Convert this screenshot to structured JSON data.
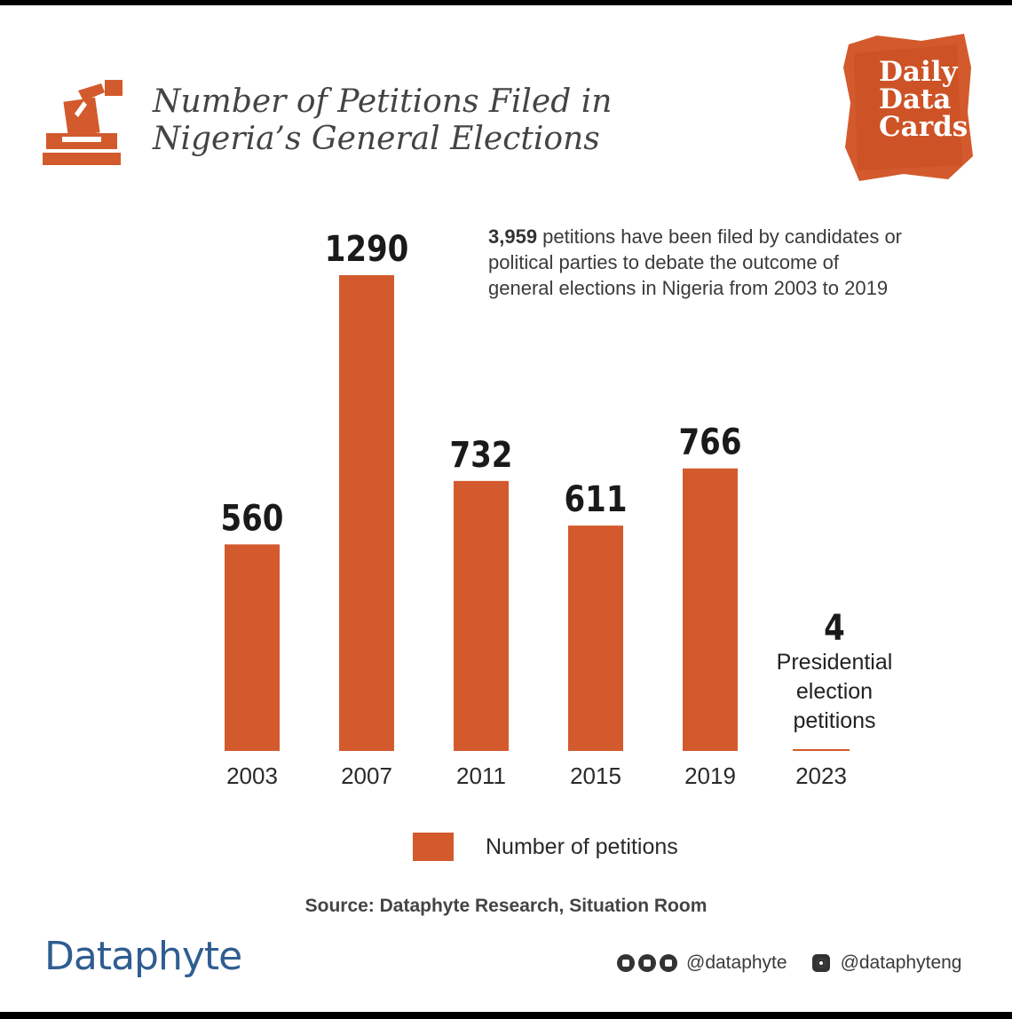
{
  "header": {
    "title_line1": "Number of Petitions Filed in",
    "title_line2": "Nigeria’s General Elections",
    "badge_line1": "Daily",
    "badge_line2": "Data",
    "badge_line3": "Cards"
  },
  "note": {
    "highlight": "3,959",
    "text": " petitions have been filed by candidates or political parties to debate the outcome of general elections in Nigeria from 2003 to 2019"
  },
  "special": {
    "value": "4",
    "label_line1": "Presidential",
    "label_line2": "election",
    "label_line3": "petitions",
    "year": "2023"
  },
  "legend": {
    "label": "Number of petitions"
  },
  "footer": {
    "source": "Source: Dataphyte Research, Situation Room",
    "brand": "Dataphyte",
    "handle1": "@dataphyte",
    "handle2": "@dataphyteng"
  },
  "colors": {
    "bar": "#d35a2c",
    "text": "#1a1a1a",
    "brand": "#2f5d91"
  },
  "icons": [
    "ballot-box-icon",
    "facebook-icon",
    "twitter-icon",
    "youtube-icon",
    "instagram-icon"
  ],
  "chart_data": {
    "type": "bar",
    "title": "Number of Petitions Filed in Nigeria’s General Elections",
    "categories": [
      "2003",
      "2007",
      "2011",
      "2015",
      "2019",
      "2023"
    ],
    "series": [
      {
        "name": "Number of petitions",
        "values": [
          560,
          1290,
          732,
          611,
          766,
          4
        ]
      }
    ],
    "data_labels": [
      "560",
      "1290",
      "732",
      "611",
      "766",
      "4"
    ],
    "ylim": [
      0,
      1290
    ],
    "grid": false,
    "legend": "bottom"
  }
}
